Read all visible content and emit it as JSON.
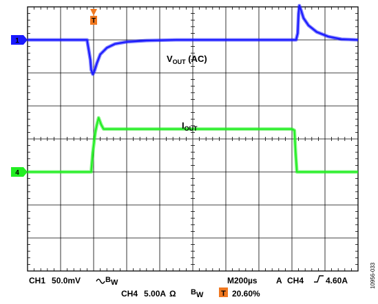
{
  "chart_data": {
    "type": "line",
    "x_unit": "µs",
    "xlim": [
      -400,
      1600
    ],
    "divisions": {
      "x": 10,
      "y": 8
    },
    "grid": true,
    "series": [
      {
        "name": "CH1",
        "label_main": "V",
        "label_sub": "OUT",
        "label_suffix": " (AC)",
        "channel_marker": "1",
        "color": "#1a1aff",
        "scale": "50.0mV/div",
        "baseline_div": 1.0,
        "x": [
          -400,
          -40,
          -30,
          -20,
          -15,
          -5,
          5,
          20,
          40,
          80,
          130,
          200,
          320,
          500,
          800,
          1150,
          1225,
          1235,
          1240,
          1245,
          1255,
          1270,
          1300,
          1350,
          1420,
          1500,
          1600
        ],
        "y": [
          0,
          0,
          -15,
          -30,
          -45,
          -52,
          -47,
          -35,
          -22,
          -12,
          -6,
          -3,
          -1,
          0,
          0,
          0,
          0,
          10,
          40,
          52,
          45,
          33,
          22,
          12,
          5,
          1,
          0
        ]
      },
      {
        "name": "CH4",
        "label_main": "I",
        "label_sub": "OUT",
        "label_suffix": "",
        "channel_marker": "4",
        "color": "#22ee22",
        "scale": "5.00A/div",
        "baseline_div": 5.0,
        "x": [
          -400,
          -15,
          -5,
          10,
          20,
          30,
          45,
          60,
          1200,
          1215,
          1222,
          1230,
          1600
        ],
        "y": [
          0,
          0,
          3,
          6,
          7.2,
          8.2,
          7.2,
          6.5,
          6.5,
          6.3,
          3,
          0,
          0
        ]
      }
    ],
    "trigger": {
      "marker": "T",
      "time_us": 0,
      "color": "#f07820"
    }
  },
  "readout": {
    "line1": {
      "ch1": "CH1",
      "ch1_scale": "50.0mV",
      "bw_b": "B",
      "bw_w": "W",
      "timebase": "M200µs",
      "trigger_mode": "A",
      "trigger_ch": "CH4",
      "trigger_level": "4.60A"
    },
    "line2": {
      "ch4": "CH4",
      "ch4_scale": "5.00A",
      "ohm": "Ω",
      "bw_b": "B",
      "bw_w": "W",
      "trigger_badge": "T",
      "trigger_position": "20.60%"
    }
  },
  "figure_id": "10956-033"
}
